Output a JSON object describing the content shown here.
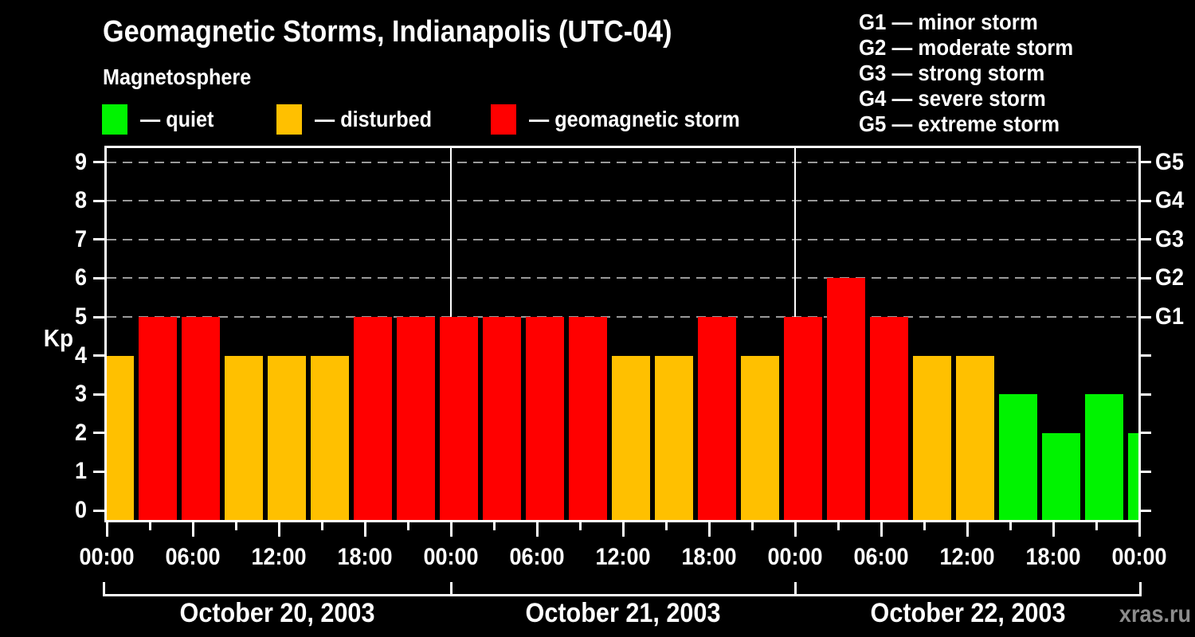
{
  "header": {
    "title": "Geomagnetic Storms, Indianapolis (UTC-04)",
    "subtitle": "Magnetosphere"
  },
  "colors": {
    "quiet": "#00f300",
    "disturbed": "#ffc000",
    "storm": "#ff0000",
    "grid": "#9a9a9a",
    "frame": "#ffffff",
    "watermark": "#8c8c8c"
  },
  "legend": {
    "items": [
      {
        "name": "quiet",
        "label": "— quiet"
      },
      {
        "name": "disturbed",
        "label": "— disturbed"
      },
      {
        "name": "storm",
        "label": "— geomagnetic storm"
      }
    ]
  },
  "g_legend": {
    "lines": [
      "G1 — minor storm",
      "G2 — moderate storm",
      "G3 — strong storm",
      "G4 — severe storm",
      "G5 — extreme storm"
    ]
  },
  "watermark": "xras.ru",
  "chart_data": {
    "type": "bar",
    "title": "Geomagnetic Storms, Indianapolis (UTC-04)",
    "ylabel": "Kp",
    "ylim": [
      -0.35,
      9.45
    ],
    "y_ticks": [
      0,
      1,
      2,
      3,
      4,
      5,
      6,
      7,
      8,
      9
    ],
    "gridlines_at": [
      5,
      6,
      7,
      8,
      9
    ],
    "right_axis": [
      {
        "label": "G1",
        "value": 5
      },
      {
        "label": "G2",
        "value": 6
      },
      {
        "label": "G3",
        "value": 7
      },
      {
        "label": "G4",
        "value": 8
      },
      {
        "label": "G5",
        "value": 9
      }
    ],
    "x_tick_labels": [
      "00:00",
      "06:00",
      "12:00",
      "18:00",
      "00:00",
      "06:00",
      "12:00",
      "18:00",
      "00:00",
      "06:00",
      "12:00",
      "18:00",
      "00:00"
    ],
    "bar_interval_hours": 3,
    "days": [
      {
        "date": "October 20, 2003",
        "kp": [
          4,
          5,
          5,
          4,
          4,
          4,
          5,
          5
        ]
      },
      {
        "date": "October 21, 2003",
        "kp": [
          5,
          5,
          5,
          5,
          4,
          4,
          5,
          4
        ]
      },
      {
        "date": "October 22, 2003",
        "kp": [
          5,
          6,
          5,
          4,
          4,
          3,
          2,
          3
        ]
      }
    ],
    "partial_next_bar_kp": 2,
    "color_rules": {
      "quiet_max_kp": 3,
      "disturbed_kp": 4,
      "storm_min_kp": 5
    }
  }
}
